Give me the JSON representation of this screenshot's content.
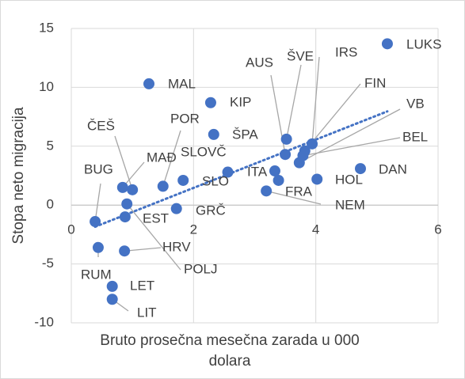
{
  "chart_data": {
    "type": "scatter",
    "x_label": "Bruto prosečna mesečna zarada u 000 dolara",
    "y_label": "Stopa neto migracija",
    "xlim": [
      0,
      6
    ],
    "xticks": [
      0,
      2,
      4,
      6
    ],
    "ylim": [
      -10,
      15
    ],
    "yticks": [
      -10,
      -5,
      0,
      5,
      10,
      15
    ],
    "grid": true,
    "trendline": "linear",
    "series": [
      {
        "color": "#4472c4",
        "point_labels": [
          "LUKS",
          "MAL",
          "KIP",
          "ŠPA",
          "ŠVE",
          "IRS",
          "AUS",
          "FIN",
          "BEL",
          "VB",
          "DAN",
          "HOL",
          "ITA",
          "FRA",
          "NEM",
          "SLOVČ",
          "SLO",
          "POR",
          "GRČ",
          "ČEŠ",
          "MAĐ",
          "POLJ",
          "EST",
          "BUG",
          "HRV",
          "RUM",
          "LET",
          "LIT"
        ],
        "x": [
          5.17,
          1.27,
          2.28,
          2.33,
          3.52,
          3.94,
          3.5,
          3.82,
          3.79,
          3.73,
          4.73,
          4.02,
          3.33,
          3.39,
          3.19,
          2.56,
          1.83,
          1.5,
          1.72,
          1.0,
          0.84,
          0.91,
          0.88,
          0.39,
          0.87,
          0.44,
          0.67,
          0.67
        ],
        "values": [
          13.7,
          10.3,
          8.7,
          6.0,
          5.6,
          5.2,
          4.3,
          4.6,
          4.2,
          3.6,
          3.1,
          2.2,
          2.9,
          2.1,
          1.2,
          2.8,
          2.1,
          1.6,
          -0.3,
          1.3,
          1.5,
          0.1,
          -1.0,
          -1.4,
          -3.9,
          -3.6,
          -6.9,
          -8.0
        ]
      }
    ]
  }
}
